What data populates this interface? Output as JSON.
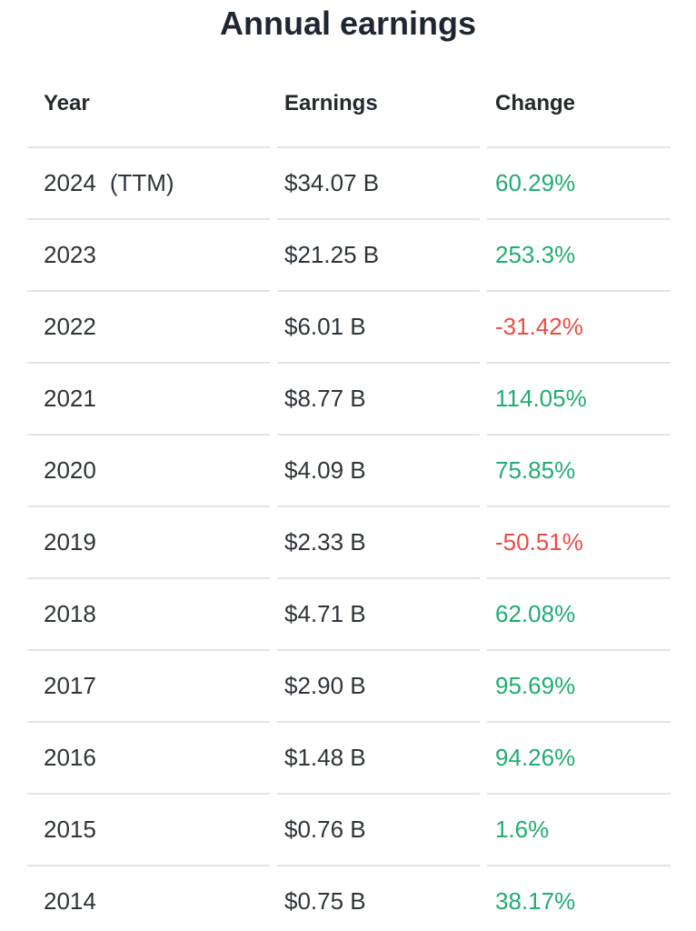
{
  "page": {
    "title": "Annual earnings"
  },
  "theme": {
    "positive_green": "#22ac71",
    "negative_red": "#ee4b46",
    "divider": "#e3e3e3",
    "text": "#2f343a",
    "header_text": "#24292f",
    "title_text": "#1e2631",
    "background": "#ffffff"
  },
  "chart_data": {
    "type": "table",
    "title": "Annual earnings",
    "columns": [
      "Year",
      "Earnings",
      "Change"
    ],
    "units": {
      "earnings": "USD billions",
      "change": "percent"
    },
    "rows": [
      {
        "year": "2024",
        "year_suffix": "(TTM)",
        "earnings": "$34.07 B",
        "earnings_b": 34.07,
        "change": "60.29%",
        "change_pct": 60.29,
        "direction": "up"
      },
      {
        "year": "2023",
        "year_suffix": "",
        "earnings": "$21.25 B",
        "earnings_b": 21.25,
        "change": "253.3%",
        "change_pct": 253.3,
        "direction": "up"
      },
      {
        "year": "2022",
        "year_suffix": "",
        "earnings": "$6.01 B",
        "earnings_b": 6.01,
        "change": "-31.42%",
        "change_pct": -31.42,
        "direction": "down"
      },
      {
        "year": "2021",
        "year_suffix": "",
        "earnings": "$8.77 B",
        "earnings_b": 8.77,
        "change": "114.05%",
        "change_pct": 114.05,
        "direction": "up"
      },
      {
        "year": "2020",
        "year_suffix": "",
        "earnings": "$4.09 B",
        "earnings_b": 4.09,
        "change": "75.85%",
        "change_pct": 75.85,
        "direction": "up"
      },
      {
        "year": "2019",
        "year_suffix": "",
        "earnings": "$2.33 B",
        "earnings_b": 2.33,
        "change": "-50.51%",
        "change_pct": -50.51,
        "direction": "down"
      },
      {
        "year": "2018",
        "year_suffix": "",
        "earnings": "$4.71 B",
        "earnings_b": 4.71,
        "change": "62.08%",
        "change_pct": 62.08,
        "direction": "up"
      },
      {
        "year": "2017",
        "year_suffix": "",
        "earnings": "$2.90 B",
        "earnings_b": 2.9,
        "change": "95.69%",
        "change_pct": 95.69,
        "direction": "up"
      },
      {
        "year": "2016",
        "year_suffix": "",
        "earnings": "$1.48 B",
        "earnings_b": 1.48,
        "change": "94.26%",
        "change_pct": 94.26,
        "direction": "up"
      },
      {
        "year": "2015",
        "year_suffix": "",
        "earnings": "$0.76 B",
        "earnings_b": 0.76,
        "change": "1.6%",
        "change_pct": 1.6,
        "direction": "up"
      },
      {
        "year": "2014",
        "year_suffix": "",
        "earnings": "$0.75 B",
        "earnings_b": 0.75,
        "change": "38.17%",
        "change_pct": 38.17,
        "direction": "up"
      }
    ]
  }
}
